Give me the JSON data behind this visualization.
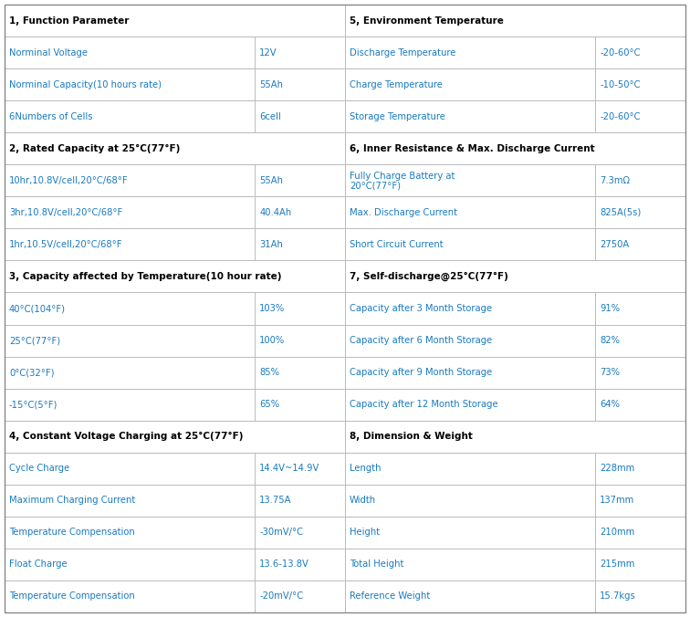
{
  "figsize": [
    7.56,
    6.76
  ],
  "dpi": 100,
  "bg_color": "#ffffff",
  "header_text_color": "#000000",
  "data_text_color": "#1a7abf",
  "line_color": "#bbbbbb",
  "header_font_size": 7.5,
  "data_font_size": 7.2,
  "pairs": [
    {
      "left_header": "1, Function Parameter",
      "right_header": "5, Environment Temperature",
      "rows": [
        [
          "Norminal Voltage",
          "12V",
          "Discharge Temperature",
          "-20-60°C"
        ],
        [
          "Norminal Capacity(10 hours rate)",
          "55Ah",
          "Charge Temperature",
          "-10-50°C"
        ],
        [
          "6Numbers of Cells",
          "6cell",
          "Storage Temperature",
          "-20-60°C"
        ]
      ]
    },
    {
      "left_header": "2, Rated Capacity at 25°C(77°F)",
      "right_header": "6, Inner Resistance & Max. Discharge Current",
      "rows": [
        [
          "10hr,10.8V/cell,20°C/68°F",
          "55Ah",
          "Fully Charge Battery at\n20°C(77°F)",
          "7.3mΩ"
        ],
        [
          "3hr,10.8V/cell,20°C/68°F",
          "40.4Ah",
          "Max. Discharge Current",
          "825A(5s)"
        ],
        [
          "1hr,10.5V/cell,20°C/68°F",
          "31Ah",
          "Short Circuit Current",
          "2750A"
        ]
      ]
    },
    {
      "left_header": "3, Capacity affected by Temperature(10 hour rate)",
      "right_header": "7, Self-discharge@25°C(77°F)",
      "rows": [
        [
          "40°C(104°F)",
          "103%",
          "Capacity after 3 Month Storage",
          "91%"
        ],
        [
          "25°C(77°F)",
          "100%",
          "Capacity after 6 Month Storage",
          "82%"
        ],
        [
          "0°C(32°F)",
          "85%",
          "Capacity after 9 Month Storage",
          "73%"
        ],
        [
          "-15°C(5°F)",
          "65%",
          "Capacity after 12 Month Storage",
          "64%"
        ]
      ]
    },
    {
      "left_header": "4, Constant Voltage Charging at 25°C(77°F)",
      "right_header": "8, Dimension & Weight",
      "rows": [
        [
          "Cycle Charge",
          "14.4V~14.9V",
          "Length",
          "228mm"
        ],
        [
          "Maximum Charging Current",
          "13.75A",
          "Width",
          "137mm"
        ],
        [
          "Temperature Compensation",
          "-30mV/°C",
          "Height",
          "210mm"
        ],
        [
          "Float Charge",
          "13.6-13.8V",
          "Total Height",
          "215mm"
        ],
        [
          "Temperature Compensation",
          "-20mV/°C",
          "Reference Weight",
          "15.7kgs"
        ]
      ]
    }
  ]
}
